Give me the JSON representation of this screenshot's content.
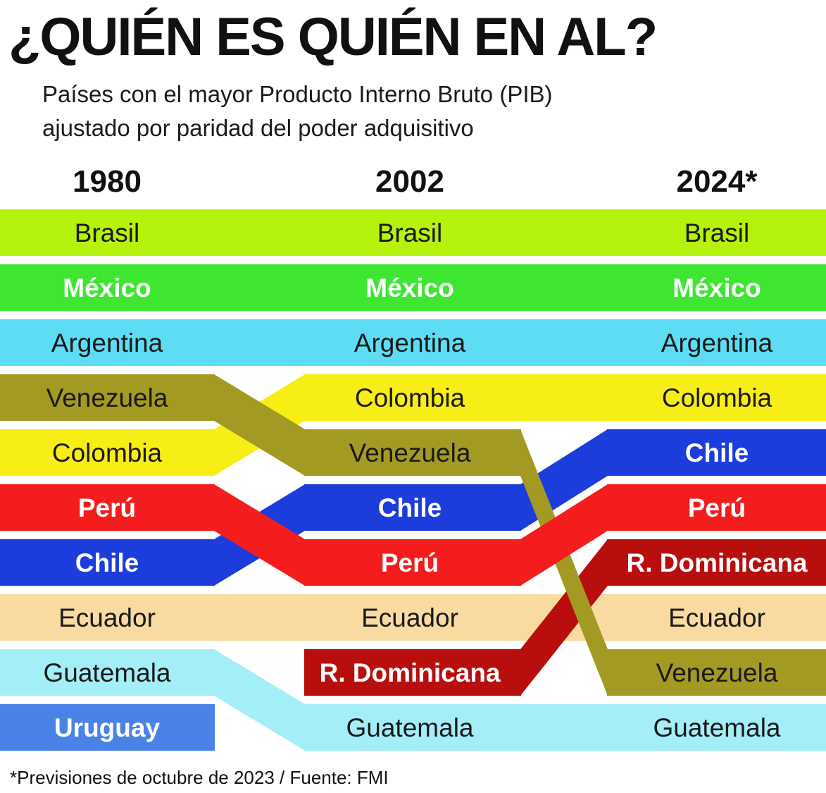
{
  "title": "¿QUIÉN ES QUIÉN EN AL?",
  "subtitle_lines": [
    "Países con el mayor Producto Interno Bruto (PIB)",
    "ajustado por paridad del poder adquisitivo"
  ],
  "footnote": "*Previsiones de octubre de 2023 / Fuente: FMI",
  "chart_data": {
    "type": "table",
    "columns": [
      "1980",
      "2002",
      "2024*"
    ],
    "rankings": {
      "1980": [
        "Brasil",
        "México",
        "Argentina",
        "Venezuela",
        "Colombia",
        "Perú",
        "Chile",
        "Ecuador",
        "Guatemala",
        "Uruguay"
      ],
      "2002": [
        "Brasil",
        "México",
        "Argentina",
        "Colombia",
        "Venezuela",
        "Chile",
        "Perú",
        "Ecuador",
        "R. Dominicana",
        "Guatemala"
      ],
      "2024*": [
        "Brasil",
        "México",
        "Argentina",
        "Colombia",
        "Chile",
        "Perú",
        "R. Dominicana",
        "Ecuador",
        "Venezuela",
        "Guatemala"
      ]
    },
    "country_colors": {
      "Brasil": "#b5f20c",
      "México": "#3ee632",
      "Argentina": "#5ddcf4",
      "Venezuela": "#a39a24",
      "Colombia": "#f7ee16",
      "Perú": "#f41c1c",
      "Chile": "#1c3ddc",
      "Ecuador": "#f9dba2",
      "Guatemala": "#a4eef7",
      "Uruguay": "#4a82e8",
      "R. Dominicana": "#b80e0e"
    },
    "white_text": [
      "México",
      "Perú",
      "Chile",
      "Uruguay",
      "R. Dominicana"
    ]
  }
}
